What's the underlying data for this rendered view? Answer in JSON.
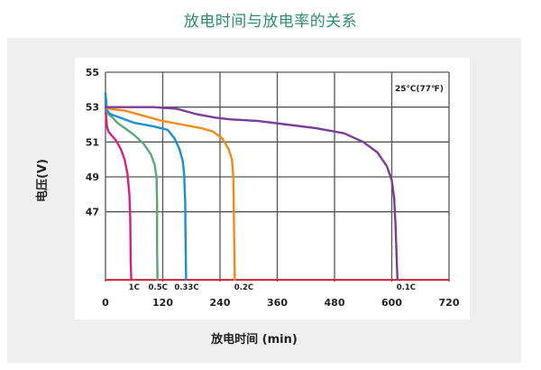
{
  "title": "放电时间与放电率的关系",
  "chart_data": {
    "type": "line",
    "xlabel": "放电时间 (min)",
    "ylabel": "电压(V)",
    "annotation": "25℃(77℉)",
    "xlim": [
      0,
      720
    ],
    "ylim": [
      43,
      55
    ],
    "x_ticks": [
      "0",
      "120",
      "240",
      "360",
      "480",
      "600",
      "720"
    ],
    "y_ticks": [
      "55",
      "53",
      "51",
      "49",
      "47"
    ],
    "y_tick_values": [
      55,
      53,
      51,
      49,
      47
    ],
    "x_tick_values": [
      0,
      120,
      240,
      360,
      480,
      600,
      720
    ],
    "grid": true,
    "cutoff_line": {
      "y": 43.1,
      "color": "#cc2233"
    },
    "series": [
      {
        "name": "1C",
        "color": "#d6217a",
        "label_x": 60,
        "points": [
          [
            0,
            53.7
          ],
          [
            1,
            52.6
          ],
          [
            3,
            51.9
          ],
          [
            6,
            51.6
          ],
          [
            12,
            51.4
          ],
          [
            22,
            51.1
          ],
          [
            32,
            50.6
          ],
          [
            40,
            50.0
          ],
          [
            46,
            49.2
          ],
          [
            50,
            48.0
          ],
          [
            52,
            46.5
          ],
          [
            53,
            44.0
          ],
          [
            54,
            43.1
          ]
        ]
      },
      {
        "name": "0.5C",
        "color": "#5aa878",
        "label_x": 110,
        "points": [
          [
            0,
            53.8
          ],
          [
            2,
            52.8
          ],
          [
            6,
            52.6
          ],
          [
            15,
            52.4
          ],
          [
            25,
            52.1
          ],
          [
            40,
            51.8
          ],
          [
            60,
            51.4
          ],
          [
            80,
            50.9
          ],
          [
            95,
            50.3
          ],
          [
            103,
            49.7
          ],
          [
            107,
            49.0
          ],
          [
            108,
            47.5
          ],
          [
            108,
            45.0
          ],
          [
            109,
            43.1
          ]
        ]
      },
      {
        "name": "0.33C",
        "color": "#1a8fd6",
        "label_x": 170,
        "points": [
          [
            0,
            53.8
          ],
          [
            3,
            52.8
          ],
          [
            10,
            52.6
          ],
          [
            30,
            52.4
          ],
          [
            60,
            52.1
          ],
          [
            100,
            51.9
          ],
          [
            130,
            51.7
          ],
          [
            145,
            51.2
          ],
          [
            155,
            50.6
          ],
          [
            162,
            49.9
          ],
          [
            165,
            49.1
          ],
          [
            167,
            47.5
          ],
          [
            168,
            45.0
          ],
          [
            169,
            43.1
          ]
        ]
      },
      {
        "name": "0.2C",
        "color": "#f28a1a",
        "label_x": 290,
        "points": [
          [
            0,
            53.0
          ],
          [
            8,
            52.9
          ],
          [
            40,
            52.8
          ],
          [
            80,
            52.5
          ],
          [
            120,
            52.2
          ],
          [
            160,
            52.0
          ],
          [
            200,
            51.8
          ],
          [
            225,
            51.6
          ],
          [
            245,
            51.2
          ],
          [
            258,
            50.6
          ],
          [
            265,
            50.0
          ],
          [
            268,
            49.0
          ],
          [
            269,
            47.0
          ],
          [
            270,
            45.0
          ],
          [
            271,
            43.1
          ]
        ]
      },
      {
        "name": "0.1C",
        "color": "#7a3d99",
        "label_x": 630,
        "points": [
          [
            0,
            53.0
          ],
          [
            40,
            53.0
          ],
          [
            100,
            53.0
          ],
          [
            150,
            52.9
          ],
          [
            190,
            52.6
          ],
          [
            230,
            52.4
          ],
          [
            260,
            52.3
          ],
          [
            320,
            52.2
          ],
          [
            380,
            52.0
          ],
          [
            440,
            51.8
          ],
          [
            500,
            51.5
          ],
          [
            540,
            51.0
          ],
          [
            570,
            50.4
          ],
          [
            590,
            49.6
          ],
          [
            600,
            48.8
          ],
          [
            605,
            47.8
          ],
          [
            608,
            46.2
          ],
          [
            610,
            44.5
          ],
          [
            612,
            43.1
          ]
        ]
      }
    ]
  }
}
